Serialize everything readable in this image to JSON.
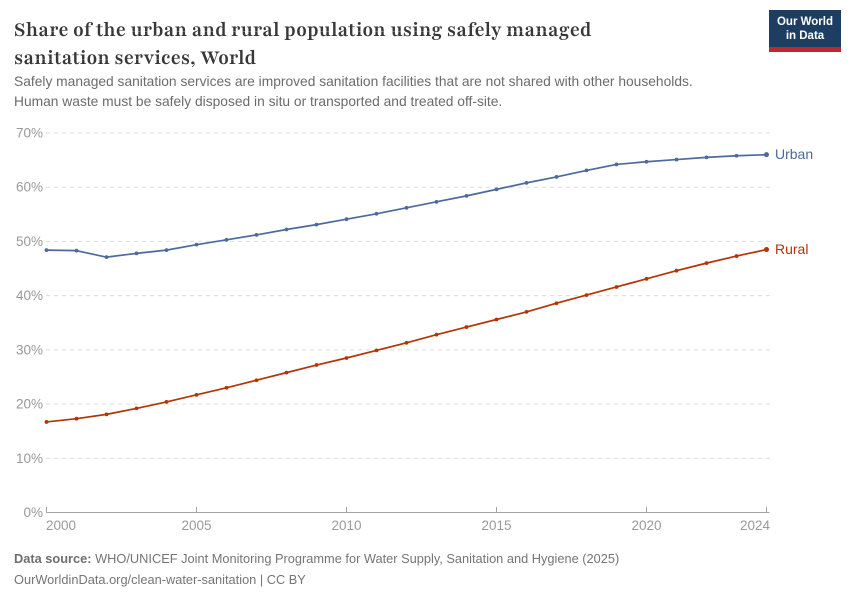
{
  "header": {
    "title_lines": {
      "l1": "Share of the urban and rural population using safely managed",
      "l2": "sanitation services, World"
    },
    "subtitle_lines": {
      "l1": "Safely managed sanitation services are improved sanitation facilities that are not shared with other households.",
      "l2": "Human waste must be safely disposed in situ or transported and treated off-site."
    },
    "logo": {
      "line1": "Our World",
      "line2": "in Data",
      "bg_color": "#1d3d63",
      "bar_color": "#c2262e"
    }
  },
  "chart_data": {
    "type": "line",
    "title": "Share of the urban and rural population using safely managed sanitation services, World",
    "x": [
      2000,
      2001,
      2002,
      2003,
      2004,
      2005,
      2006,
      2007,
      2008,
      2009,
      2010,
      2011,
      2012,
      2013,
      2014,
      2015,
      2016,
      2017,
      2018,
      2019,
      2020,
      2021,
      2022,
      2023,
      2024
    ],
    "series": [
      {
        "name": "Urban",
        "color": "#4c6a9c",
        "values": [
          48.4,
          48.3,
          47.1,
          47.8,
          48.4,
          49.4,
          50.3,
          51.2,
          52.2,
          53.1,
          54.1,
          55.1,
          56.2,
          57.3,
          58.4,
          59.6,
          60.8,
          61.9,
          63.1,
          64.2,
          64.7,
          65.1,
          65.5,
          65.8,
          66.0
        ]
      },
      {
        "name": "Rural",
        "color": "#b13507",
        "values": [
          16.7,
          17.3,
          18.1,
          19.2,
          20.4,
          21.7,
          23.0,
          24.4,
          25.8,
          27.2,
          28.5,
          29.9,
          31.3,
          32.8,
          34.2,
          35.6,
          37.0,
          38.6,
          40.1,
          41.6,
          43.1,
          44.6,
          46.0,
          47.3,
          48.5
        ]
      }
    ],
    "xlabel": "",
    "ylabel": "",
    "ylim": [
      0,
      70
    ],
    "yticks": [
      0,
      10,
      20,
      30,
      40,
      50,
      60,
      70
    ],
    "ytick_suffix": "%",
    "xticks": [
      2000,
      2005,
      2010,
      2015,
      2020,
      2024
    ],
    "grid": "horizontal-dashed",
    "legend_position": "line-end-labels"
  },
  "footer": {
    "datasource_label": "Data source:",
    "datasource_text": " WHO/UNICEF Joint Monitoring Programme for Water Supply, Sanitation and Hygiene (2025)",
    "license_line": "OurWorldinData.org/clean-water-sanitation | CC BY"
  }
}
